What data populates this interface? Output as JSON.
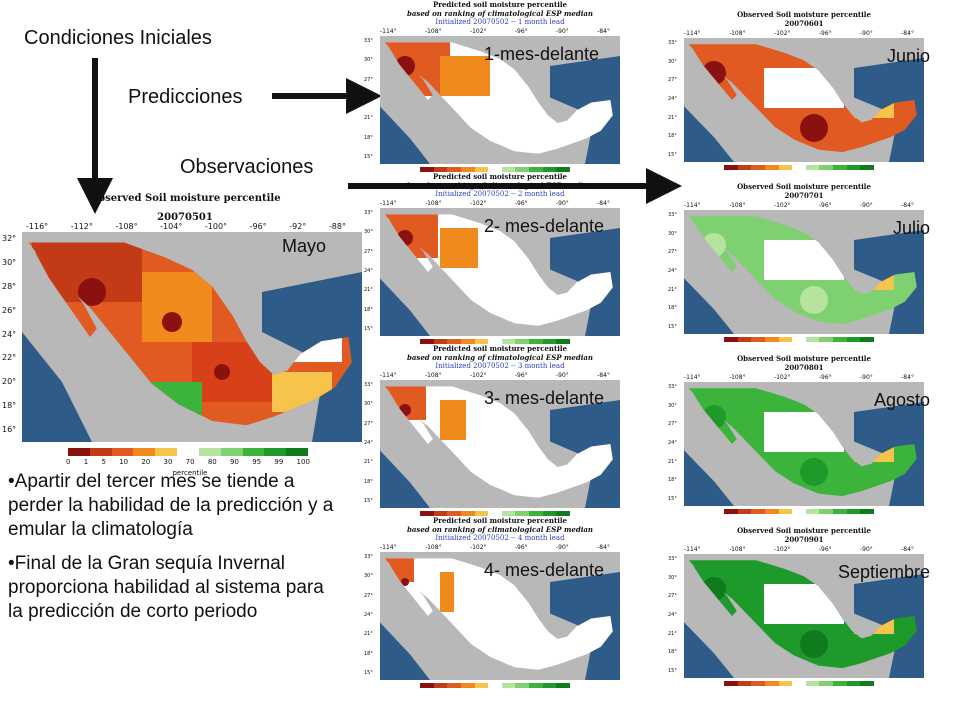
{
  "labels": {
    "initial": "Condiciones Iniciales",
    "predictions": "Predicciones",
    "observations": "Observaciones",
    "mayo": "Mayo"
  },
  "big_map": {
    "title": "Observed Soil moisture percentile",
    "date": "20070501",
    "lon_ticks": [
      "-116°",
      "-112°",
      "-108°",
      "-104°",
      "-100°",
      "-96°",
      "-92°",
      "-88°"
    ],
    "lat_ticks": [
      "32°",
      "30°",
      "28°",
      "26°",
      "24°",
      "22°",
      "20°",
      "18°",
      "16°"
    ],
    "colorbar_ticks": [
      "0",
      "1",
      "5",
      "10",
      "20",
      "30",
      "70",
      "80",
      "90",
      "95",
      "99",
      "100"
    ],
    "colorbar_label": "percentile"
  },
  "predictions": [
    {
      "title": "Predicted soil moisture percentile",
      "subtitle": "based on ranking of climatological ESP median",
      "init": "Initialized 20070502 -- 1 month lead",
      "lead_label": "1-mes-delante"
    },
    {
      "title": "Predicted soil moisture percentile",
      "subtitle": "based on ranking of climatological ESP median",
      "init": "Initialized 20070502 -- 2 month lead",
      "lead_label": "2- mes-delante"
    },
    {
      "title": "Predicted soil moisture percentile",
      "subtitle": "based on ranking of climatological ESP median",
      "init": "Initialized 20070502 -- 3 month lead",
      "lead_label": "3- mes-delante"
    },
    {
      "title": "Predicted soil moisture percentile",
      "subtitle": "based on ranking of climatological ESP median",
      "init": "Initialized 20070502 -- 4 month lead",
      "lead_label": "4- mes-delante"
    }
  ],
  "observations": [
    {
      "title": "Observed Soil moisture percentile",
      "date": "20070601",
      "month": "Junio"
    },
    {
      "title": "Observed Soil moisture percentile",
      "date": "20070701",
      "month": "Julio"
    },
    {
      "title": "Observed Soil moisture percentile",
      "date": "20070801",
      "month": "Agosto"
    },
    {
      "title": "Observed Soil moisture percentile",
      "date": "20070901",
      "month": "Septiembre"
    }
  ],
  "small_lon_ticks": [
    "-114°",
    "-108°",
    "-102°",
    "-96°",
    "-90°",
    "-84°"
  ],
  "small_lat_ticks": [
    "33°",
    "30°",
    "27°",
    "24°",
    "21°",
    "18°",
    "15°"
  ],
  "colorbar_label": "percentile",
  "bullets": [
    "•Apartir del tercer mes se tiende a perder la habilidad de la predicción y a emular la climatología",
    "•Final de la Gran sequía Invernal proporciona habilidad al sistema para la predicción de corto periodo"
  ],
  "colors": {
    "ocean": "#2e5b88",
    "land_outside": "#b8b8b8",
    "dry_dark": "#8b1010",
    "dry": "#d8401a",
    "dry_mid": "#f08a1c",
    "dry_light": "#f6c44a",
    "wet": "#3cb43c",
    "wet_dark": "#0f7a1e"
  }
}
